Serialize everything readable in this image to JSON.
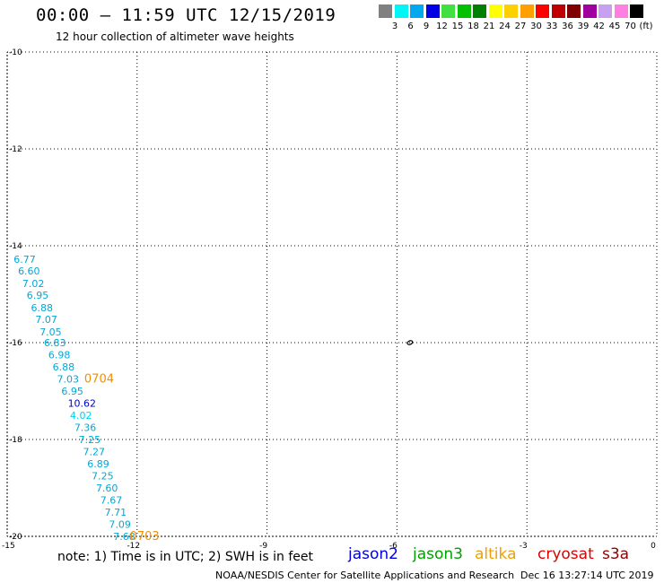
{
  "header": {
    "title": "00:00 — 11:59 UTC 12/15/2019",
    "subtitle": "12 hour collection of altimeter wave heights"
  },
  "legend": {
    "colors": [
      "#808080",
      "#00f5f5",
      "#00a8f0",
      "#0000e6",
      "#40e040",
      "#00c000",
      "#008000",
      "#ffff00",
      "#ffd000",
      "#ffa000",
      "#ff0000",
      "#c00000",
      "#800000",
      "#a000a0",
      "#c8a0f0",
      "#ff80e0",
      "#000000"
    ],
    "labels": [
      "3",
      "6",
      "9",
      "12",
      "15",
      "18",
      "21",
      "24",
      "27",
      "30",
      "33",
      "36",
      "39",
      "42",
      "45",
      "70",
      "(ft)"
    ]
  },
  "map": {
    "lat_ticks": [
      "-10",
      "-12",
      "-14",
      "-16",
      "-18",
      "-20"
    ],
    "lon_ticks": [
      "-15",
      "-12",
      "-9",
      "-6",
      "-3",
      "0"
    ],
    "observations": [
      {
        "lon": -14.85,
        "lat": -14.28,
        "swh": "6.77",
        "color": "#00a8d8"
      },
      {
        "lon": -14.75,
        "lat": -14.52,
        "swh": "6.60",
        "color": "#00a8d8"
      },
      {
        "lon": -14.65,
        "lat": -14.78,
        "swh": "7.02",
        "color": "#00a8d8"
      },
      {
        "lon": -14.55,
        "lat": -15.02,
        "swh": "6.95",
        "color": "#00a8d8"
      },
      {
        "lon": -14.45,
        "lat": -15.28,
        "swh": "6.88",
        "color": "#00a8d8"
      },
      {
        "lon": -14.35,
        "lat": -15.52,
        "swh": "7.07",
        "color": "#00a8d8"
      },
      {
        "lon": -14.25,
        "lat": -15.78,
        "swh": "7.05",
        "color": "#00a8d8"
      },
      {
        "lon": -14.15,
        "lat": -16.0,
        "swh": "6.83",
        "color": "#00a8d8"
      },
      {
        "lon": -14.05,
        "lat": -16.25,
        "swh": "6.98",
        "color": "#00a8d8"
      },
      {
        "lon": -13.95,
        "lat": -16.5,
        "swh": "6.88",
        "color": "#00a8d8"
      },
      {
        "lon": -13.85,
        "lat": -16.75,
        "swh": "7.03",
        "color": "#00a8d8"
      },
      {
        "lon": -13.75,
        "lat": -17.0,
        "swh": "6.95",
        "color": "#00a8d8"
      },
      {
        "lon": -13.6,
        "lat": -17.25,
        "swh": "10.62",
        "color": "#0000c0"
      },
      {
        "lon": -13.55,
        "lat": -17.5,
        "swh": "4.02",
        "color": "#00d0f0"
      },
      {
        "lon": -13.45,
        "lat": -17.75,
        "swh": "7.36",
        "color": "#00a8d8"
      },
      {
        "lon": -13.35,
        "lat": -18.0,
        "swh": "7.25",
        "color": "#00a8d8"
      },
      {
        "lon": -13.25,
        "lat": -18.25,
        "swh": "7.27",
        "color": "#00a8d8"
      },
      {
        "lon": -13.15,
        "lat": -18.5,
        "swh": "6.89",
        "color": "#00a8d8"
      },
      {
        "lon": -13.05,
        "lat": -18.75,
        "swh": "7.25",
        "color": "#00a8d8"
      },
      {
        "lon": -12.95,
        "lat": -19.0,
        "swh": "7.60",
        "color": "#00a8d8"
      },
      {
        "lon": -12.85,
        "lat": -19.25,
        "swh": "7.67",
        "color": "#00a8d8"
      },
      {
        "lon": -12.75,
        "lat": -19.5,
        "swh": "7.71",
        "color": "#00a8d8"
      },
      {
        "lon": -12.65,
        "lat": -19.75,
        "swh": "7.09",
        "color": "#00a8d8"
      },
      {
        "lon": -12.55,
        "lat": -20.0,
        "swh": "7.68",
        "color": "#00a8d8"
      }
    ],
    "time_labels": [
      {
        "lon": -13.8,
        "lat": -16.75,
        "text": "0704",
        "color": "#f09000"
      },
      {
        "lon": -12.75,
        "lat": -20.0,
        "text": "0703",
        "color": "#f09000"
      }
    ],
    "island_marker": {
      "lon": -5.7,
      "lat": -16.0
    }
  },
  "footer": {
    "note": "note: 1) Time is in UTC; 2) SWH is in feet",
    "satellites": [
      {
        "name": "jason2",
        "color": "#0000e0"
      },
      {
        "name": "jason3",
        "color": "#00a000"
      },
      {
        "name": "altika",
        "color": "#f0a000"
      },
      {
        "name": "cryosat",
        "color": "#e00000"
      },
      {
        "name": "s3a",
        "color": "#900000"
      }
    ],
    "credit": "NOAA/NESDIS Center for Satellite Applications and Research",
    "timestamp": "Dec 16 13:27:14 UTC 2019"
  }
}
